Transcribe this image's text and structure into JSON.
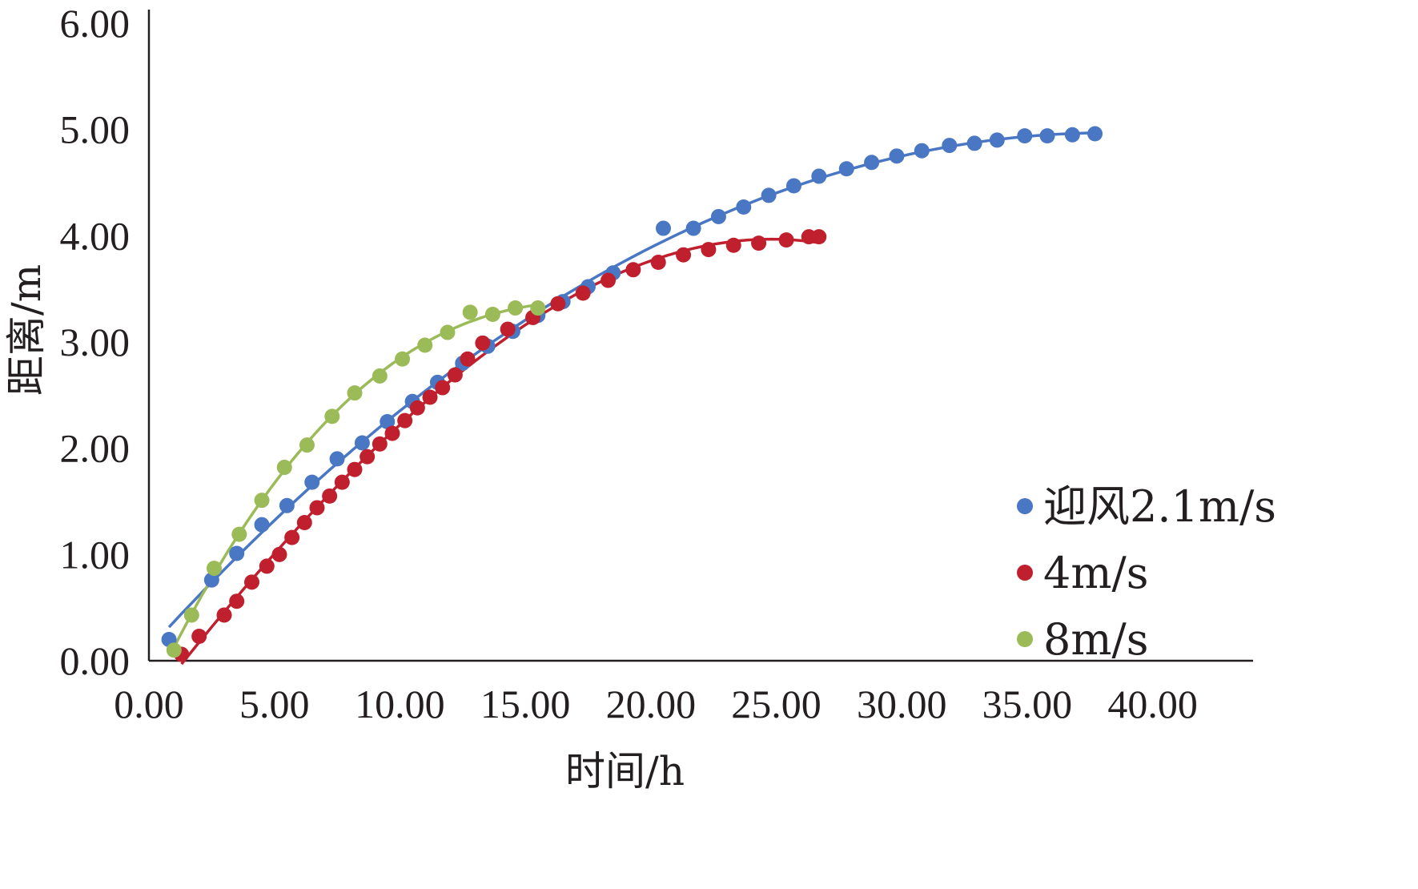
{
  "chart_data": {
    "type": "scatter",
    "title": "",
    "xlabel": "时间/h",
    "ylabel": "距离/m",
    "xlim": [
      0,
      44
    ],
    "ylim": [
      0,
      6
    ],
    "xticks": [
      "0.00",
      "5.00",
      "10.00",
      "15.00",
      "20.00",
      "25.00",
      "30.00",
      "35.00",
      "40.00"
    ],
    "yticks": [
      "0.00",
      "1.00",
      "2.00",
      "3.00",
      "4.00",
      "5.00",
      "6.00"
    ],
    "grid": false,
    "legend_position": "bottom-right",
    "series": [
      {
        "name": "迎风2.1m/s",
        "color": "#4a77c4",
        "trendline": true,
        "points": [
          [
            0.8,
            0.2
          ],
          [
            2.5,
            0.76
          ],
          [
            3.5,
            1.01
          ],
          [
            4.5,
            1.28
          ],
          [
            5.5,
            1.46
          ],
          [
            6.5,
            1.68
          ],
          [
            7.5,
            1.9
          ],
          [
            8.5,
            2.05
          ],
          [
            9.5,
            2.25
          ],
          [
            10.5,
            2.44
          ],
          [
            11.5,
            2.62
          ],
          [
            12.5,
            2.8
          ],
          [
            13.5,
            2.96
          ],
          [
            14.5,
            3.1
          ],
          [
            15.5,
            3.25
          ],
          [
            16.5,
            3.38
          ],
          [
            17.5,
            3.52
          ],
          [
            18.5,
            3.65
          ],
          [
            20.5,
            4.07
          ],
          [
            21.7,
            4.07
          ],
          [
            22.7,
            4.18
          ],
          [
            23.7,
            4.27
          ],
          [
            24.7,
            4.38
          ],
          [
            25.7,
            4.47
          ],
          [
            26.7,
            4.56
          ],
          [
            27.8,
            4.63
          ],
          [
            28.8,
            4.69
          ],
          [
            29.8,
            4.75
          ],
          [
            30.8,
            4.8
          ],
          [
            31.9,
            4.85
          ],
          [
            32.9,
            4.87
          ],
          [
            33.8,
            4.9
          ],
          [
            34.9,
            4.94
          ],
          [
            35.8,
            4.94
          ],
          [
            36.8,
            4.95
          ],
          [
            37.7,
            4.96
          ]
        ]
      },
      {
        "name": "4m/s",
        "color": "#c0202e",
        "trendline": true,
        "points": [
          [
            1.3,
            0.06
          ],
          [
            2.0,
            0.23
          ],
          [
            3.0,
            0.43
          ],
          [
            3.5,
            0.56
          ],
          [
            4.1,
            0.74
          ],
          [
            4.7,
            0.89
          ],
          [
            5.2,
            1.0
          ],
          [
            5.7,
            1.16
          ],
          [
            6.2,
            1.3
          ],
          [
            6.7,
            1.44
          ],
          [
            7.2,
            1.55
          ],
          [
            7.7,
            1.68
          ],
          [
            8.2,
            1.8
          ],
          [
            8.7,
            1.92
          ],
          [
            9.2,
            2.04
          ],
          [
            9.7,
            2.14
          ],
          [
            10.2,
            2.26
          ],
          [
            10.7,
            2.38
          ],
          [
            11.2,
            2.48
          ],
          [
            11.7,
            2.57
          ],
          [
            12.2,
            2.69
          ],
          [
            12.7,
            2.84
          ],
          [
            13.3,
            2.99
          ],
          [
            14.3,
            3.12
          ],
          [
            15.3,
            3.23
          ],
          [
            16.3,
            3.36
          ],
          [
            17.3,
            3.46
          ],
          [
            18.3,
            3.58
          ],
          [
            19.3,
            3.68
          ],
          [
            20.3,
            3.75
          ],
          [
            21.3,
            3.82
          ],
          [
            22.3,
            3.87
          ],
          [
            23.3,
            3.91
          ],
          [
            24.3,
            3.93
          ],
          [
            25.4,
            3.96
          ],
          [
            26.3,
            3.99
          ],
          [
            26.7,
            3.99
          ]
        ]
      },
      {
        "name": "8m/s",
        "color": "#9bbb59",
        "trendline": true,
        "points": [
          [
            1.0,
            0.1
          ],
          [
            1.7,
            0.43
          ],
          [
            2.6,
            0.87
          ],
          [
            3.6,
            1.19
          ],
          [
            4.5,
            1.51
          ],
          [
            5.4,
            1.82
          ],
          [
            6.3,
            2.03
          ],
          [
            7.3,
            2.3
          ],
          [
            8.2,
            2.52
          ],
          [
            9.2,
            2.68
          ],
          [
            10.1,
            2.84
          ],
          [
            11.0,
            2.97
          ],
          [
            11.9,
            3.09
          ],
          [
            12.8,
            3.28
          ],
          [
            13.7,
            3.26
          ],
          [
            14.6,
            3.32
          ],
          [
            15.5,
            3.32
          ]
        ]
      }
    ]
  }
}
